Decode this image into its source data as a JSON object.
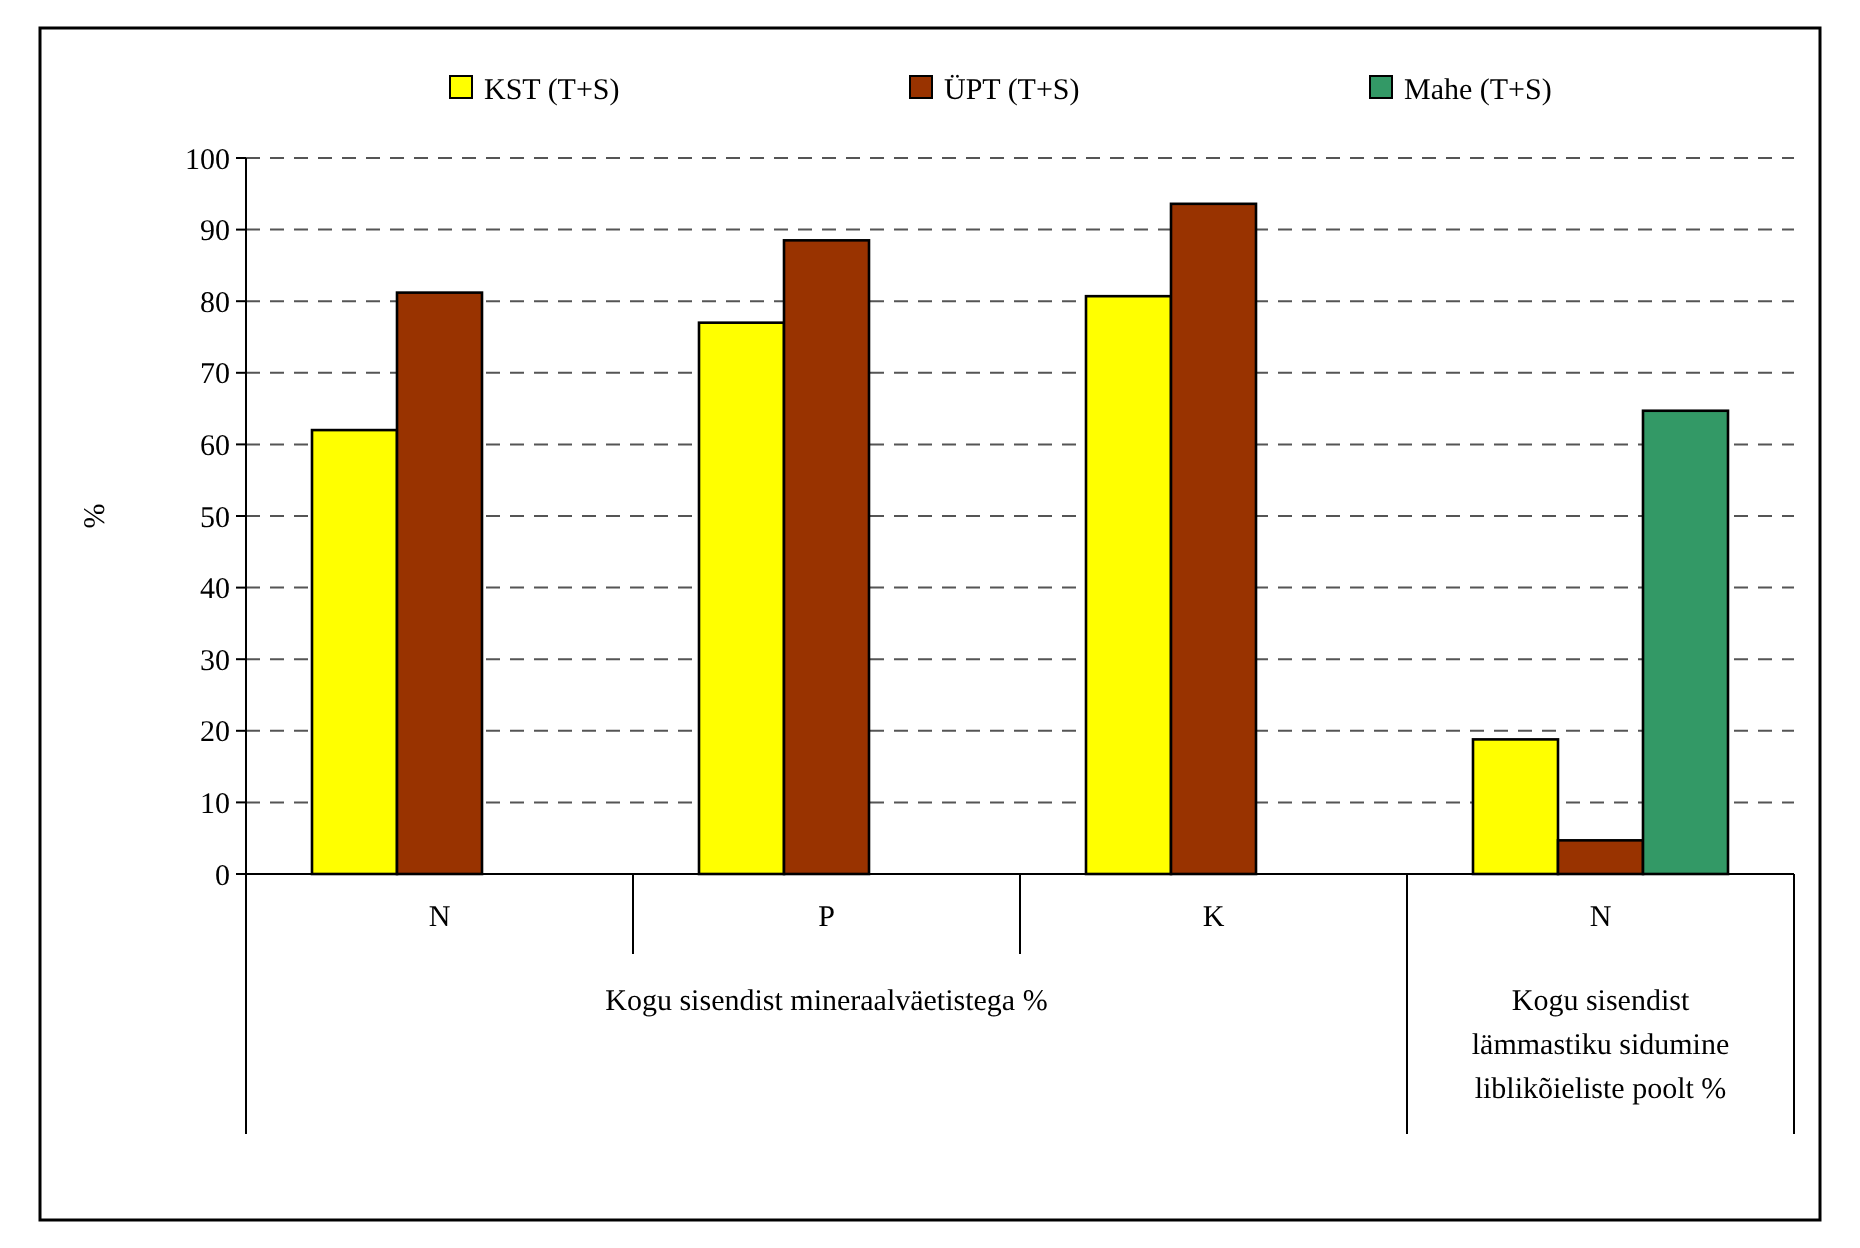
{
  "chart_data": {
    "type": "bar",
    "categories": [
      "N",
      "P",
      "K",
      "N"
    ],
    "series": [
      {
        "name": "KST (T+S)",
        "color": "#ffff00",
        "values": [
          62.0,
          77.0,
          80.7,
          18.8
        ]
      },
      {
        "name": "ÜPT (T+S)",
        "color": "#993300",
        "values": [
          81.2,
          88.5,
          93.6,
          4.7
        ]
      },
      {
        "name": "Mahe (T+S)",
        "color": "#339966",
        "values": [
          null,
          null,
          null,
          64.7
        ]
      }
    ],
    "ylabel": "%",
    "ylim": [
      0,
      100
    ],
    "yticks": [
      0,
      10,
      20,
      30,
      40,
      50,
      60,
      70,
      80,
      90,
      100
    ],
    "grid": "y",
    "legend": "top",
    "annotations": [
      "Kogu sisendist mineraalväetistega %",
      "Kogu sisendist lämmastiku sidumine liblikõieliste poolt %"
    ]
  }
}
